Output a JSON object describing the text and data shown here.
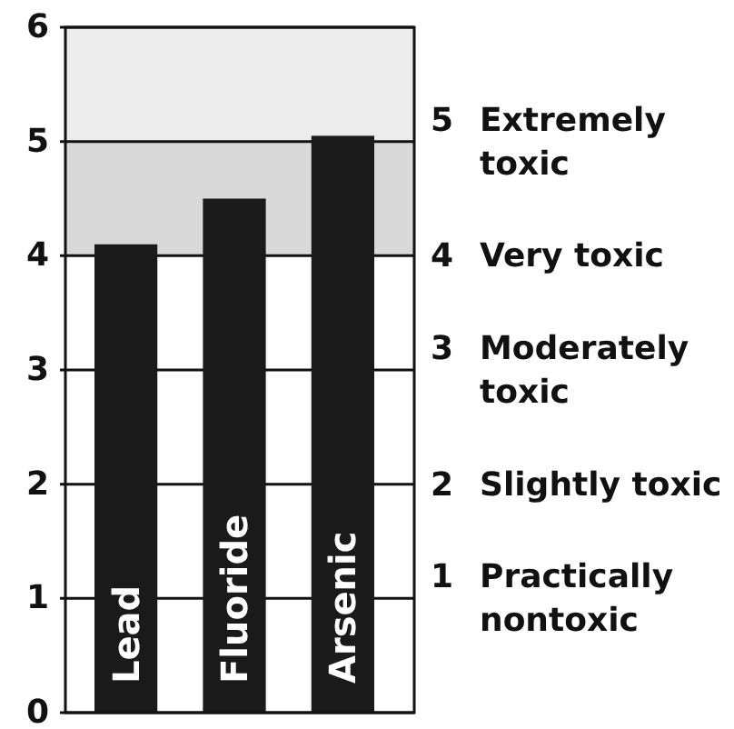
{
  "chart_data": {
    "type": "bar",
    "categories": [
      "Lead",
      "Fluoride",
      "Arsenic"
    ],
    "values": [
      4.1,
      4.5,
      5.05
    ],
    "color": "#1a1a1a",
    "ylim": [
      0,
      6
    ],
    "yticks": [
      0,
      1,
      2,
      3,
      4,
      5,
      6
    ],
    "y2lim": [
      0,
      6
    ],
    "y2ticks": [
      {
        "value": 1,
        "label": "1 Practically nontoxic"
      },
      {
        "value": 2,
        "label": "2 Slightly toxic"
      },
      {
        "value": 3,
        "label": "3 Moderately toxic"
      },
      {
        "value": 4,
        "label": "4 Very toxic"
      },
      {
        "value": 5,
        "label": "5 Extremely toxic"
      }
    ],
    "grid": "y",
    "bands": [
      {
        "axis": "y",
        "from": 4,
        "to": 5,
        "color": "#d9d9d9"
      },
      {
        "axis": "y",
        "from": 5,
        "to": 6,
        "color": "#ececec"
      }
    ]
  }
}
